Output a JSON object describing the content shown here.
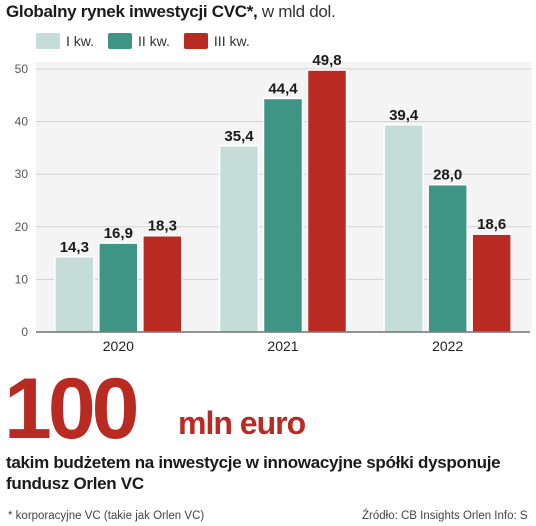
{
  "header": {
    "title_bold": "Globalny rynek inwestycji CVC*,",
    "title_light": " w mld dol."
  },
  "colors": {
    "q1": "#c4ddd8",
    "q2": "#3f9585",
    "q3": "#b82a22",
    "accent": "#b82a22"
  },
  "chart_data": {
    "type": "bar",
    "title": "Globalny rynek inwestycji CVC*, w mld dol.",
    "xlabel": "",
    "ylabel": "",
    "categories": [
      "2020",
      "2021",
      "2022"
    ],
    "series": [
      {
        "name": "I kw.",
        "values": [
          14.3,
          35.4,
          39.4
        ],
        "labels": [
          "14,3",
          "35,4",
          "39,4"
        ]
      },
      {
        "name": "II kw.",
        "values": [
          16.9,
          44.4,
          28.0
        ],
        "labels": [
          "16,9",
          "44,4",
          "28,0"
        ]
      },
      {
        "name": "III kw.",
        "values": [
          18.3,
          49.8,
          18.6
        ],
        "labels": [
          "18,3",
          "49,8",
          "18,6"
        ]
      }
    ],
    "ylim": [
      0,
      50
    ],
    "yticks": [
      0,
      10,
      20,
      30,
      40,
      50
    ],
    "grid": true,
    "legend": "top-left"
  },
  "highlight": {
    "number": "100",
    "unit": "mln euro",
    "text": "takim budżetem na inwestycje w innowacyjne spółki dysponuje fundusz Orlen VC"
  },
  "footnote": "* korporacyjne VC (takie jak Orlen VC)",
  "source": "Źródło: CB Insights Orlen   Info: S"
}
